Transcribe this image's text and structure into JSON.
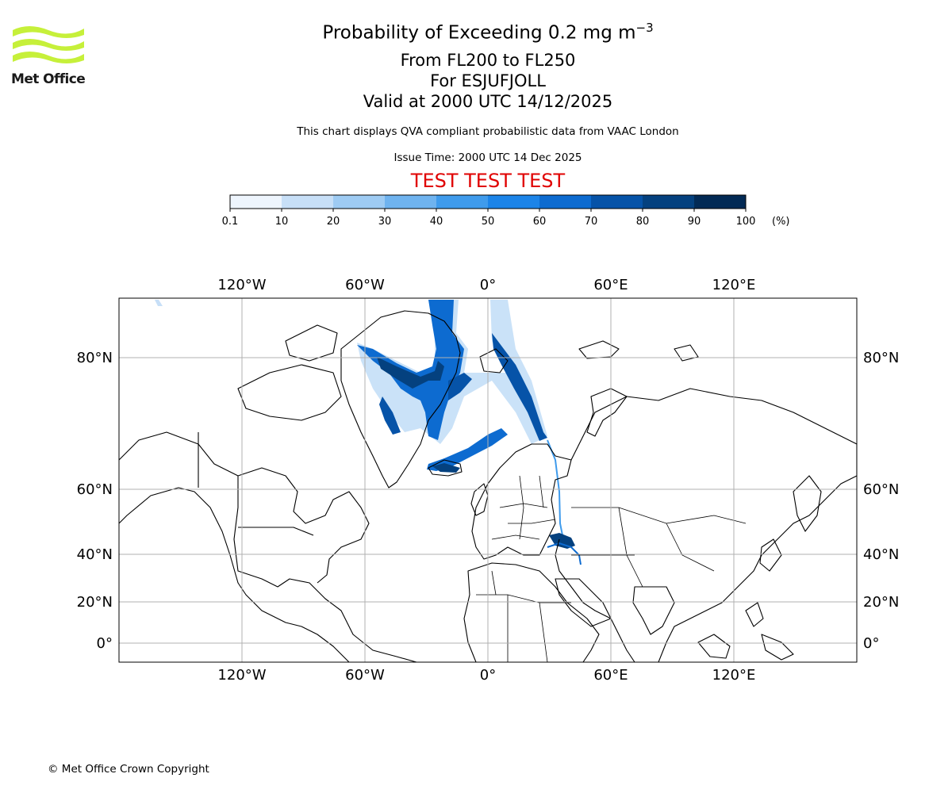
{
  "logo": {
    "text": "Met Office"
  },
  "header": {
    "title_prefix": "Probability of Exceeding 0.2 mg m",
    "title_exponent": "−3",
    "levels": "From FL200 to FL250",
    "volcano": "For ESJUFJOLL",
    "valid": "Valid at 2000 UTC 14/12/2025",
    "description": "This chart displays QVA compliant probabilistic data from VAAC London",
    "issue_time": "Issue Time: 2000 UTC 14 Dec 2025",
    "test_banner": "TEST TEST TEST"
  },
  "colors": {
    "banner": "#e00000",
    "bins": [
      "#eef5fd",
      "#c7dff7",
      "#9ecbf3",
      "#6fb3ef",
      "#3f9bec",
      "#1c84e8",
      "#0d6bd0",
      "#0653a8",
      "#04417f",
      "#022a55"
    ]
  },
  "colorbar": {
    "ticks": [
      "0.1",
      "10",
      "20",
      "30",
      "40",
      "50",
      "60",
      "70",
      "80",
      "90",
      "100"
    ],
    "unit": "(%)"
  },
  "map": {
    "lon_ticks": [
      "120°W",
      "60°W",
      "0°",
      "60°E",
      "120°E"
    ],
    "lat_ticks": [
      "80°N",
      "60°N",
      "40°N",
      "20°N",
      "0°"
    ],
    "grid": true
  },
  "footer": {
    "copyright": "© Met Office Crown Copyright"
  }
}
